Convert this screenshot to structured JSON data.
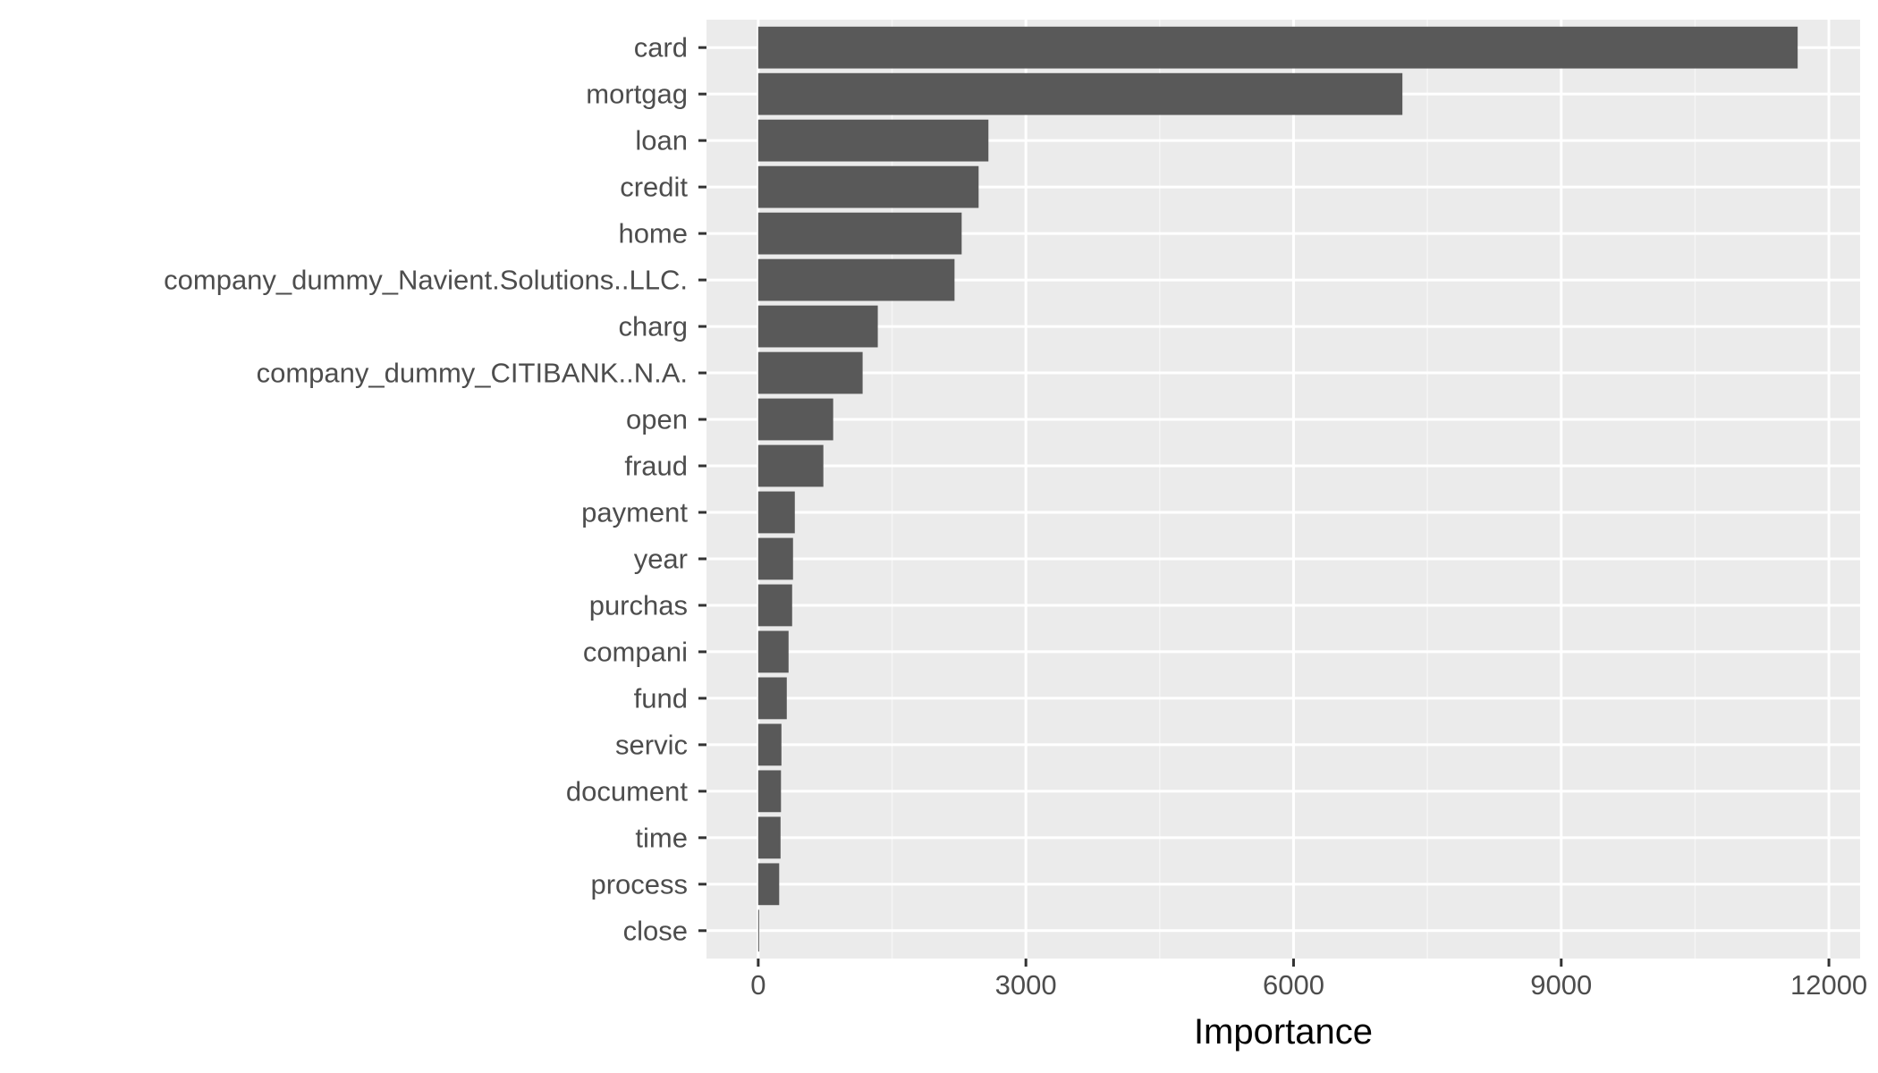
{
  "chart_data": {
    "type": "bar",
    "orientation": "horizontal",
    "categories": [
      "card",
      "mortgag",
      "loan",
      "credit",
      "home",
      "company_dummy_Navient.Solutions..LLC.",
      "charg",
      "company_dummy_CITIBANK..N.A.",
      "open",
      "fraud",
      "payment",
      "year",
      "purchas",
      "compani",
      "fund",
      "servic",
      "document",
      "time",
      "process",
      "close"
    ],
    "values": [
      11650,
      7220,
      2580,
      2470,
      2280,
      2200,
      1340,
      1170,
      840,
      730,
      410,
      390,
      380,
      340,
      320,
      260,
      255,
      250,
      235,
      10
    ],
    "title": "",
    "xlabel": "Importance",
    "ylabel": "",
    "xlim": [
      -580,
      12350
    ],
    "xticks": [
      0,
      3000,
      6000,
      9000,
      12000
    ],
    "xtick_labels": [
      "0",
      "3000",
      "6000",
      "9000",
      "12000"
    ],
    "grid": true,
    "legend": "none",
    "colors": {
      "bar": "#595959",
      "panel": "#ebebeb",
      "grid_major": "#ffffff",
      "grid_minor": "#f5f5f5",
      "tick_text": "#4d4d4d",
      "tick_mark": "#333333"
    }
  }
}
